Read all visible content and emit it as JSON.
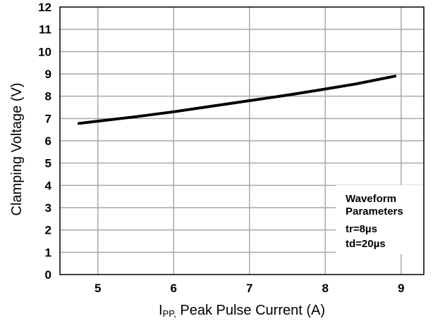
{
  "chart_data": {
    "type": "line",
    "xlabel_prefix": "I",
    "xlabel_subscript": "PP,",
    "xlabel_rest": " Peak Pulse Current (A)",
    "ylabel": "Clamping Voltage (V)",
    "xlim": [
      4.5,
      9.3
    ],
    "ylim": [
      0,
      12
    ],
    "x_ticks": [
      5,
      6,
      7,
      8,
      9
    ],
    "y_ticks": [
      0,
      1,
      2,
      3,
      4,
      5,
      6,
      7,
      8,
      9,
      10,
      11,
      12
    ],
    "grid": true,
    "series": [
      {
        "x": [
          4.75,
          5.0,
          5.5,
          6.0,
          6.5,
          7.0,
          7.5,
          8.0,
          8.4,
          8.92
        ],
        "y": [
          6.78,
          6.88,
          7.08,
          7.3,
          7.55,
          7.8,
          8.05,
          8.32,
          8.55,
          8.9
        ]
      }
    ],
    "legend": {
      "lines": [
        "Waveform",
        "Parameters",
        "tr=8µs",
        "td=20µs"
      ],
      "placement": "bottom-right"
    },
    "line_color": "#000000",
    "grid_color": "#a8a8a8"
  }
}
